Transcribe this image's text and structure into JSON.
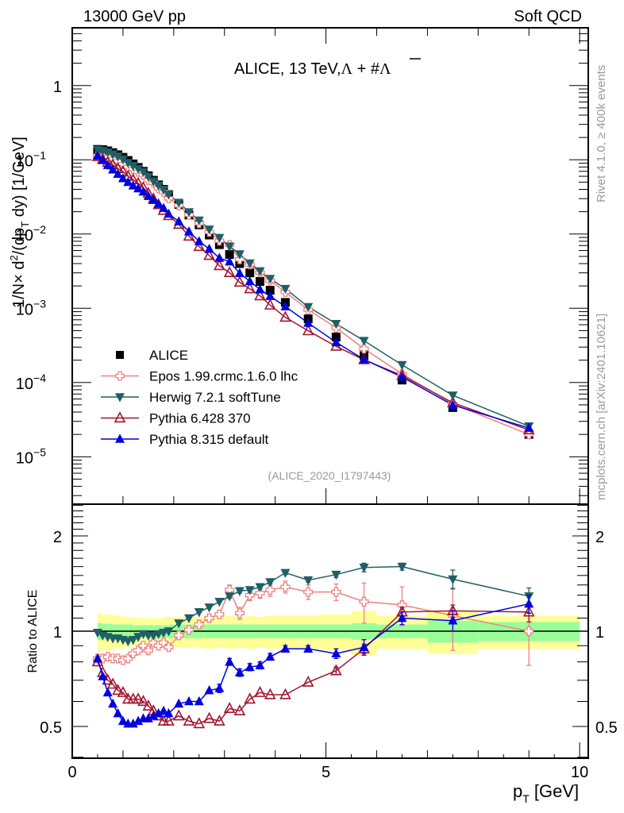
{
  "header": {
    "left": "13000 GeV pp",
    "right": "Soft QCD"
  },
  "side_labels": {
    "rivet": "Rivet 4.1.0, ≥ 400k events",
    "mcplots": "mcplots.cern.ch [arXiv:2401.10621]"
  },
  "chart_data": [
    {
      "type": "scatter",
      "panel": "main",
      "title": "ALICE, 13 TeV,Λ + #Λ̅",
      "title_parts": {
        "prefix": "ALICE, 13 TeV,",
        "lambda": "Λ",
        "plus": " + #",
        "lambdabar": "Λ"
      },
      "xlabel": "p_T [GeV]",
      "ylabel": "1/N × d²/(dp_T dy) [1/GeV]",
      "yscale": "log",
      "xlim": [
        0,
        10.17
      ],
      "ylim": [
        2.3e-06,
        6.0
      ],
      "ytick_labels": [
        {
          "value": 1,
          "text": "1",
          "exp": ""
        },
        {
          "value": 0.1,
          "text": "10",
          "exp": "−1"
        },
        {
          "value": 0.01,
          "text": "10",
          "exp": "−2"
        },
        {
          "value": 0.001,
          "text": "10",
          "exp": "−3"
        },
        {
          "value": 0.0001,
          "text": "10",
          "exp": "−4"
        },
        {
          "value": 1e-05,
          "text": "10",
          "exp": "−5"
        }
      ],
      "watermark": "(ALICE_2020_I1797443)",
      "x": [
        0.5,
        0.6,
        0.7,
        0.8,
        0.9,
        1.0,
        1.1,
        1.2,
        1.3,
        1.4,
        1.5,
        1.6,
        1.7,
        1.8,
        1.9,
        2.1,
        2.3,
        2.5,
        2.7,
        2.9,
        3.1,
        3.3,
        3.5,
        3.7,
        3.9,
        4.2,
        4.65,
        5.2,
        5.75,
        6.5,
        7.5,
        9.0
      ],
      "alice": [
        0.138,
        0.137,
        0.132,
        0.125,
        0.117,
        0.108,
        0.098,
        0.088,
        0.079,
        0.07,
        0.061,
        0.053,
        0.046,
        0.04,
        0.034,
        0.025,
        0.018,
        0.0133,
        0.0097,
        0.0072,
        0.0053,
        0.004,
        0.003,
        0.0023,
        0.00175,
        0.0012,
        0.00072,
        0.00041,
        0.00023,
        0.000108,
        4.6e-05,
        2e-05
      ],
      "legend": [
        {
          "key": "alice",
          "label": "ALICE",
          "color": "#000000",
          "marker": "square"
        },
        {
          "key": "epos",
          "label": "Epos 1.99.crmc.1.6.0 lhc",
          "color": "#f08080",
          "marker": "open-cross"
        },
        {
          "key": "herwig",
          "label": "Herwig 7.2.1 softTune",
          "color": "#1f5f66",
          "marker": "triangle-down"
        },
        {
          "key": "py6",
          "label": "Pythia 6.428 370",
          "color": "#a01530",
          "marker": "open-triangle-up"
        },
        {
          "key": "py8",
          "label": "Pythia 8.315 default",
          "color": "#0000e0",
          "marker": "triangle-up"
        }
      ],
      "legend_position": "lower-left"
    },
    {
      "type": "line",
      "panel": "ratio",
      "ylabel": "Ratio to ALICE",
      "yscale": "log",
      "ylim": [
        0.397,
        2.52
      ],
      "xlim": [
        0,
        10.17
      ],
      "ytick_labels": [
        {
          "value": 0.5,
          "text": "0.5"
        },
        {
          "value": 1,
          "text": "1"
        },
        {
          "value": 2,
          "text": "2"
        }
      ],
      "xtick_labels": [
        {
          "value": 0,
          "text": "0"
        },
        {
          "value": 5,
          "text": "5"
        },
        {
          "value": 10,
          "text": "10"
        }
      ],
      "x": [
        0.5,
        0.6,
        0.7,
        0.8,
        0.9,
        1.0,
        1.1,
        1.2,
        1.3,
        1.4,
        1.5,
        1.6,
        1.7,
        1.8,
        1.9,
        2.1,
        2.3,
        2.5,
        2.7,
        2.9,
        3.1,
        3.3,
        3.5,
        3.7,
        3.9,
        4.2,
        4.65,
        5.2,
        5.75,
        6.5,
        7.5,
        9.0
      ],
      "series": [
        {
          "key": "epos",
          "name": "Epos 1.99.crmc.1.6.0 lhc",
          "values": [
            0.82,
            0.82,
            0.83,
            0.82,
            0.82,
            0.81,
            0.82,
            0.85,
            0.87,
            0.9,
            0.87,
            0.92,
            0.9,
            0.92,
            0.89,
            0.97,
            1.01,
            1.05,
            1.1,
            1.13,
            1.35,
            1.14,
            1.3,
            1.32,
            1.35,
            1.38,
            1.33,
            1.33,
            1.24,
            1.21,
            1.12,
            1.0
          ],
          "errors": [
            0.01,
            0.01,
            0.01,
            0.01,
            0.01,
            0.01,
            0.01,
            0.01,
            0.01,
            0.01,
            0.02,
            0.02,
            0.02,
            0.02,
            0.02,
            0.02,
            0.02,
            0.03,
            0.03,
            0.03,
            0.05,
            0.05,
            0.05,
            0.05,
            0.06,
            0.06,
            0.07,
            0.08,
            0.18,
            0.17,
            0.25,
            0.22
          ]
        },
        {
          "key": "herwig",
          "name": "Herwig 7.2.1 softTune",
          "values": [
            0.99,
            0.97,
            0.96,
            0.95,
            0.95,
            0.94,
            0.93,
            0.94,
            0.96,
            0.98,
            0.97,
            0.97,
            0.98,
            0.99,
            1.0,
            1.06,
            1.1,
            1.15,
            1.19,
            1.24,
            1.29,
            1.34,
            1.35,
            1.38,
            1.43,
            1.53,
            1.45,
            1.51,
            1.59,
            1.6,
            1.46,
            1.29
          ],
          "errors": [
            0.005,
            0.005,
            0.005,
            0.005,
            0.005,
            0.005,
            0.005,
            0.005,
            0.005,
            0.005,
            0.01,
            0.01,
            0.01,
            0.01,
            0.01,
            0.01,
            0.01,
            0.01,
            0.01,
            0.01,
            0.02,
            0.02,
            0.02,
            0.02,
            0.02,
            0.02,
            0.02,
            0.03,
            0.05,
            0.04,
            0.1,
            0.08
          ]
        },
        {
          "key": "py6",
          "name": "Pythia 6.428 370",
          "values": [
            0.8,
            0.74,
            0.7,
            0.68,
            0.65,
            0.64,
            0.61,
            0.61,
            0.61,
            0.6,
            0.58,
            0.56,
            0.54,
            0.52,
            0.52,
            0.54,
            0.52,
            0.51,
            0.53,
            0.52,
            0.57,
            0.56,
            0.61,
            0.64,
            0.63,
            0.63,
            0.69,
            0.75,
            0.88,
            1.15,
            1.16,
            1.15
          ],
          "errors": [
            0.005,
            0.005,
            0.005,
            0.005,
            0.005,
            0.005,
            0.005,
            0.005,
            0.005,
            0.005,
            0.01,
            0.01,
            0.01,
            0.01,
            0.01,
            0.01,
            0.01,
            0.01,
            0.01,
            0.01,
            0.01,
            0.01,
            0.01,
            0.01,
            0.01,
            0.01,
            0.01,
            0.02,
            0.03,
            0.04,
            0.05,
            0.08
          ]
        },
        {
          "key": "py8",
          "name": "Pythia 8.315 default",
          "values": [
            0.82,
            0.72,
            0.64,
            0.59,
            0.55,
            0.52,
            0.51,
            0.51,
            0.52,
            0.53,
            0.53,
            0.54,
            0.55,
            0.56,
            0.55,
            0.59,
            0.6,
            0.6,
            0.65,
            0.66,
            0.8,
            0.74,
            0.77,
            0.78,
            0.83,
            0.88,
            0.88,
            0.85,
            0.89,
            1.1,
            1.08,
            1.22
          ],
          "errors": [
            0.005,
            0.005,
            0.005,
            0.005,
            0.005,
            0.005,
            0.005,
            0.005,
            0.005,
            0.005,
            0.01,
            0.01,
            0.01,
            0.01,
            0.01,
            0.01,
            0.01,
            0.01,
            0.01,
            0.02,
            0.02,
            0.02,
            0.02,
            0.02,
            0.02,
            0.02,
            0.02,
            0.03,
            0.05,
            0.05,
            0.08,
            0.08
          ]
        }
      ],
      "alice_band": {
        "edges": [
          0.5,
          0.6,
          0.7,
          0.8,
          0.9,
          1.0,
          1.1,
          1.2,
          1.3,
          1.4,
          1.5,
          1.6,
          1.7,
          1.8,
          1.9,
          2.0,
          2.2,
          2.4,
          2.6,
          2.8,
          3.0,
          3.2,
          3.4,
          3.6,
          3.8,
          4.0,
          4.4,
          4.9,
          5.5,
          6.0,
          7.0,
          8.0,
          10.0
        ],
        "stat_rel": [
          0.06,
          0.055,
          0.055,
          0.05,
          0.05,
          0.05,
          0.05,
          0.045,
          0.045,
          0.045,
          0.045,
          0.045,
          0.045,
          0.045,
          0.05,
          0.05,
          0.05,
          0.05,
          0.05,
          0.05,
          0.05,
          0.05,
          0.05,
          0.05,
          0.05,
          0.05,
          0.05,
          0.05,
          0.06,
          0.05,
          0.08,
          0.07
        ],
        "tot_rel": [
          0.14,
          0.13,
          0.13,
          0.12,
          0.12,
          0.11,
          0.11,
          0.1,
          0.1,
          0.1,
          0.1,
          0.1,
          0.1,
          0.11,
          0.11,
          0.11,
          0.11,
          0.11,
          0.12,
          0.11,
          0.12,
          0.11,
          0.12,
          0.11,
          0.12,
          0.12,
          0.12,
          0.13,
          0.16,
          0.12,
          0.15,
          0.12
        ],
        "stat_color": "#99ff99",
        "tot_color": "#ffff99"
      }
    }
  ]
}
